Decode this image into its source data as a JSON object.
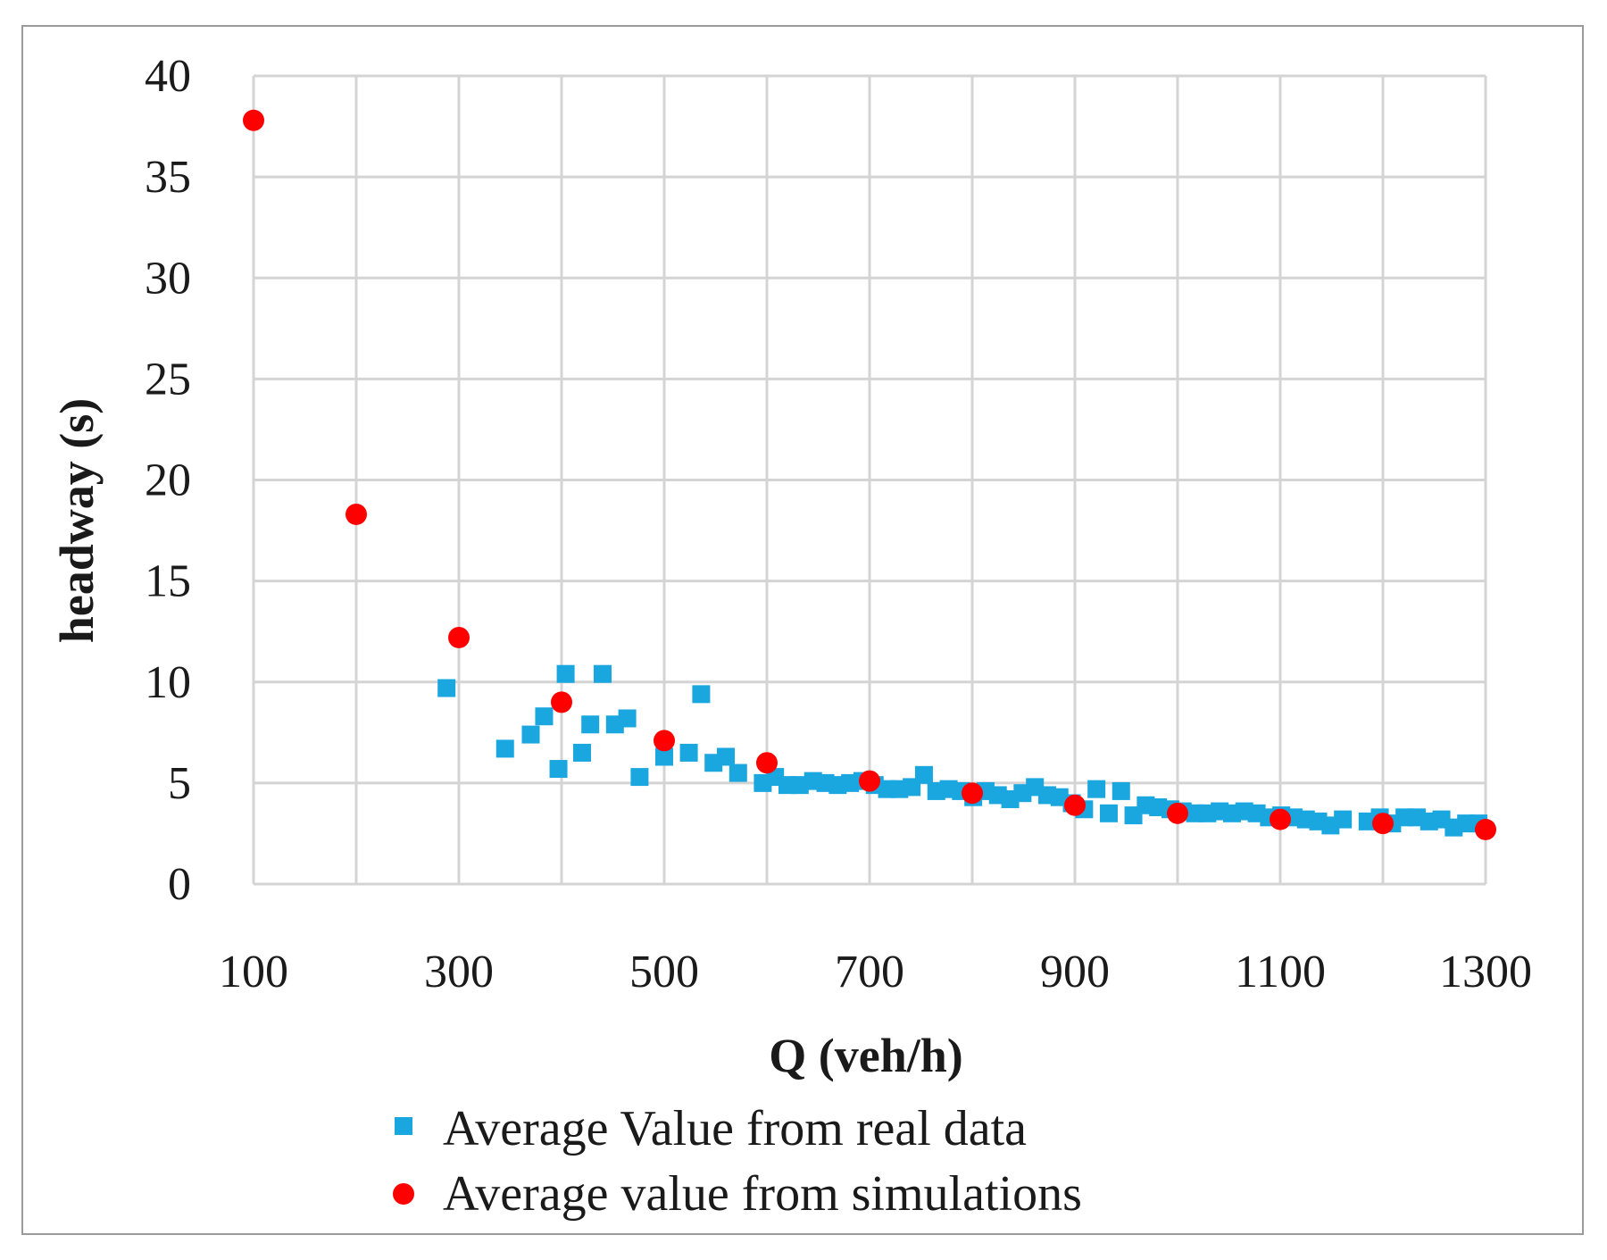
{
  "chart_data": {
    "type": "scatter",
    "title": "",
    "xlabel": "Q (veh/h)",
    "ylabel": "headway (s)",
    "xlim": [
      100,
      1300
    ],
    "ylim": [
      0,
      40
    ],
    "x_ticks": [
      100,
      300,
      500,
      700,
      900,
      1100,
      1300
    ],
    "y_ticks": [
      0,
      5,
      10,
      15,
      20,
      25,
      30,
      35,
      40
    ],
    "x_grid": [
      100,
      200,
      300,
      400,
      500,
      600,
      700,
      800,
      900,
      1000,
      1100,
      1200,
      1300
    ],
    "grid": true,
    "legend_position": "bottom",
    "series": [
      {
        "name": "Average Value from real data",
        "marker": "square",
        "color": "#1aa7e0",
        "points": [
          [
            288,
            9.7
          ],
          [
            345,
            6.7
          ],
          [
            370,
            7.4
          ],
          [
            383,
            8.3
          ],
          [
            397,
            5.7
          ],
          [
            404,
            10.4
          ],
          [
            420,
            6.5
          ],
          [
            428,
            7.9
          ],
          [
            440,
            10.4
          ],
          [
            452,
            7.9
          ],
          [
            464,
            8.2
          ],
          [
            476,
            5.3
          ],
          [
            500,
            6.3
          ],
          [
            524,
            6.5
          ],
          [
            536,
            9.4
          ],
          [
            548,
            6.0
          ],
          [
            560,
            6.3
          ],
          [
            572,
            5.5
          ],
          [
            596,
            5.0
          ],
          [
            608,
            5.3
          ],
          [
            620,
            4.9
          ],
          [
            632,
            4.9
          ],
          [
            645,
            5.1
          ],
          [
            657,
            5.0
          ],
          [
            669,
            4.9
          ],
          [
            681,
            5.0
          ],
          [
            693,
            5.1
          ],
          [
            705,
            4.9
          ],
          [
            717,
            4.7
          ],
          [
            729,
            4.7
          ],
          [
            741,
            4.8
          ],
          [
            753,
            5.4
          ],
          [
            765,
            4.6
          ],
          [
            777,
            4.7
          ],
          [
            789,
            4.6
          ],
          [
            801,
            4.3
          ],
          [
            813,
            4.6
          ],
          [
            825,
            4.4
          ],
          [
            837,
            4.2
          ],
          [
            849,
            4.5
          ],
          [
            861,
            4.8
          ],
          [
            873,
            4.4
          ],
          [
            885,
            4.3
          ],
          [
            897,
            4.0
          ],
          [
            909,
            3.7
          ],
          [
            921,
            4.7
          ],
          [
            933,
            3.5
          ],
          [
            945,
            4.6
          ],
          [
            957,
            3.4
          ],
          [
            969,
            3.9
          ],
          [
            981,
            3.8
          ],
          [
            993,
            3.7
          ],
          [
            1005,
            3.6
          ],
          [
            1017,
            3.5
          ],
          [
            1029,
            3.5
          ],
          [
            1041,
            3.6
          ],
          [
            1053,
            3.5
          ],
          [
            1065,
            3.6
          ],
          [
            1077,
            3.5
          ],
          [
            1089,
            3.3
          ],
          [
            1101,
            3.4
          ],
          [
            1113,
            3.3
          ],
          [
            1125,
            3.2
          ],
          [
            1137,
            3.1
          ],
          [
            1149,
            2.9
          ],
          [
            1161,
            3.2
          ],
          [
            1185,
            3.1
          ],
          [
            1197,
            3.3
          ],
          [
            1209,
            3.0
          ],
          [
            1221,
            3.3
          ],
          [
            1233,
            3.3
          ],
          [
            1245,
            3.1
          ],
          [
            1257,
            3.2
          ],
          [
            1269,
            2.8
          ],
          [
            1281,
            3.0
          ],
          [
            1293,
            3.0
          ]
        ]
      },
      {
        "name": "Average value from simulations",
        "marker": "circle",
        "color": "#ff0000",
        "points": [
          [
            100,
            37.8
          ],
          [
            200,
            18.3
          ],
          [
            300,
            12.2
          ],
          [
            400,
            9.0
          ],
          [
            500,
            7.1
          ],
          [
            600,
            6.0
          ],
          [
            700,
            5.1
          ],
          [
            800,
            4.5
          ],
          [
            900,
            3.9
          ],
          [
            1000,
            3.5
          ],
          [
            1100,
            3.2
          ],
          [
            1200,
            3.0
          ],
          [
            1300,
            2.7
          ]
        ]
      }
    ]
  }
}
